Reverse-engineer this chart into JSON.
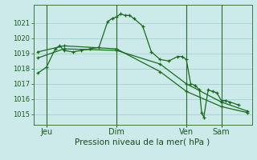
{
  "background_color": "#cceaea",
  "grid_color": "#aad4d4",
  "line_color": "#1a6b1a",
  "xlabel": "Pression niveau de la mer( hPa )",
  "ylim": [
    1014.3,
    1022.2
  ],
  "yticks": [
    1015,
    1016,
    1017,
    1018,
    1019,
    1020,
    1021
  ],
  "xtick_labels": [
    "Jeu",
    "Dim",
    "Ven",
    "Sam"
  ],
  "xtick_positions": [
    2,
    18,
    34,
    42
  ],
  "vlines": [
    2,
    18,
    34,
    42
  ],
  "series1": [
    [
      0,
      1017.7
    ],
    [
      2,
      1018.1
    ],
    [
      4,
      1019.3
    ],
    [
      5,
      1019.5
    ],
    [
      6,
      1019.2
    ],
    [
      8,
      1019.1
    ],
    [
      10,
      1019.2
    ],
    [
      12,
      1019.3
    ],
    [
      14,
      1019.4
    ],
    [
      16,
      1021.1
    ],
    [
      17,
      1021.3
    ],
    [
      18,
      1021.4
    ],
    [
      19,
      1021.6
    ],
    [
      20,
      1021.5
    ],
    [
      21,
      1021.5
    ],
    [
      22,
      1021.3
    ],
    [
      24,
      1020.8
    ],
    [
      26,
      1019.1
    ],
    [
      28,
      1018.6
    ],
    [
      30,
      1018.5
    ],
    [
      32,
      1018.8
    ],
    [
      33,
      1018.8
    ],
    [
      34,
      1018.6
    ],
    [
      35,
      1017.0
    ],
    [
      36,
      1016.9
    ],
    [
      37,
      1016.6
    ],
    [
      37.5,
      1015.1
    ],
    [
      38,
      1014.8
    ],
    [
      39,
      1016.6
    ],
    [
      40,
      1016.5
    ],
    [
      41,
      1016.4
    ],
    [
      42,
      1015.9
    ],
    [
      43,
      1015.9
    ],
    [
      44,
      1015.8
    ],
    [
      46,
      1015.6
    ]
  ],
  "series2": [
    [
      0,
      1018.7
    ],
    [
      6,
      1019.3
    ],
    [
      18,
      1019.2
    ],
    [
      28,
      1018.3
    ],
    [
      34,
      1017.0
    ],
    [
      42,
      1015.8
    ],
    [
      48,
      1015.2
    ]
  ],
  "series3": [
    [
      0,
      1019.1
    ],
    [
      6,
      1019.5
    ],
    [
      18,
      1019.3
    ],
    [
      28,
      1017.8
    ],
    [
      34,
      1016.5
    ],
    [
      42,
      1015.5
    ],
    [
      48,
      1015.1
    ]
  ]
}
